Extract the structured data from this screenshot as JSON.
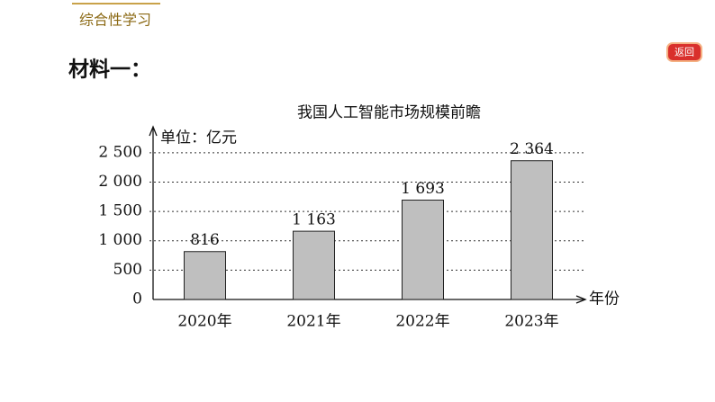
{
  "page": {
    "section": "综合性学习",
    "heading": "材料一：",
    "back_button": "返回"
  },
  "chart_data": {
    "type": "bar",
    "title": "我国人工智能市场规模前瞻",
    "y_label": "单位：亿元",
    "x_label": "年份",
    "categories": [
      "2020年",
      "2021年",
      "2022年",
      "2023年"
    ],
    "values": [
      816,
      1163,
      1693,
      2364
    ],
    "value_labels": [
      "816",
      "1 163",
      "1 693",
      "2 364"
    ],
    "color": "#bfbfbf",
    "ylim": [
      0,
      2850
    ],
    "yticks": [
      0,
      500,
      {
        "value": 1000,
        "label": "1 000"
      },
      {
        "value": 1500,
        "label": "1 500"
      },
      {
        "value": 2000,
        "label": "2 000"
      },
      {
        "value": 2500,
        "label": "2 500"
      }
    ],
    "grid": true
  }
}
